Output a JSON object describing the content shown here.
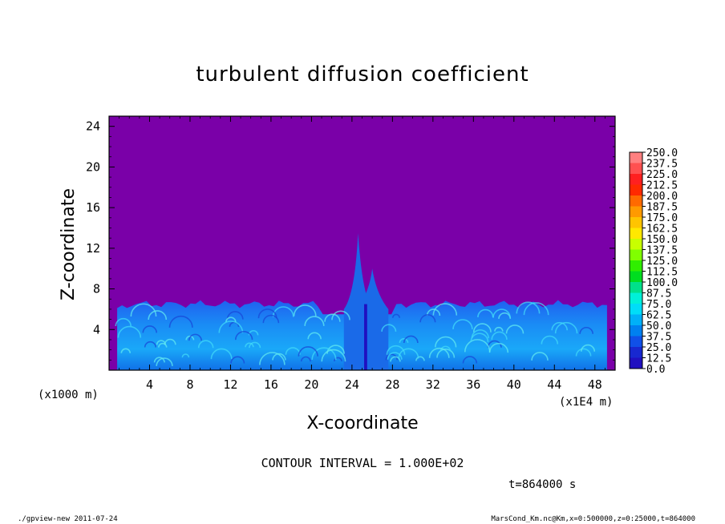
{
  "chart_data": {
    "type": "heatmap",
    "title": "turbulent diffusion coefficient",
    "xlabel": "X-coordinate",
    "ylabel": "Z-coordinate",
    "x_unit_left": "(x1000 m)",
    "x_unit_right": "(x1E4 m)",
    "xlim": [
      0,
      50
    ],
    "ylim": [
      0,
      25
    ],
    "x_ticks": [
      "4",
      "8",
      "12",
      "16",
      "20",
      "24",
      "28",
      "32",
      "36",
      "40",
      "44",
      "48"
    ],
    "y_ticks": [
      "4",
      "8",
      "12",
      "16",
      "20",
      "24"
    ],
    "colorbar_levels": [
      "250.0",
      "237.5",
      "225.0",
      "212.5",
      "200.0",
      "187.5",
      "175.0",
      "162.5",
      "150.0",
      "137.5",
      "125.0",
      "112.5",
      "100.0",
      "87.5",
      "75.0",
      "62.5",
      "50.0",
      "37.5",
      "25.0",
      "12.5",
      "0.0"
    ],
    "colorbar_colors": [
      "#ff8080",
      "#ff5050",
      "#ff2020",
      "#ff2a00",
      "#ff6a00",
      "#ff9a00",
      "#ffc400",
      "#ffe800",
      "#c8ff00",
      "#80ff00",
      "#30ee00",
      "#00dd20",
      "#00e08a",
      "#00f0d8",
      "#00ddf8",
      "#00b0f8",
      "#0080f0",
      "#1050e8",
      "#1828d0",
      "#2010c0",
      "#7a00a8"
    ],
    "background_color": "#7a00a8",
    "boundary_layer_top_z": 6.5,
    "spike_peaks": [
      {
        "x": 24.6,
        "z": 13.5
      },
      {
        "x": 26.0,
        "z": 10.0
      }
    ],
    "contour_interval": "CONTOUR INTERVAL = 1.000E+02",
    "time": "t=864000 s",
    "grid": false,
    "legend": "right"
  },
  "footer": {
    "left": "./gpview-new   2011-07-24",
    "right": "MarsCond_Km.nc@Km,x=0:500000,z=0:25000,t=864000"
  }
}
